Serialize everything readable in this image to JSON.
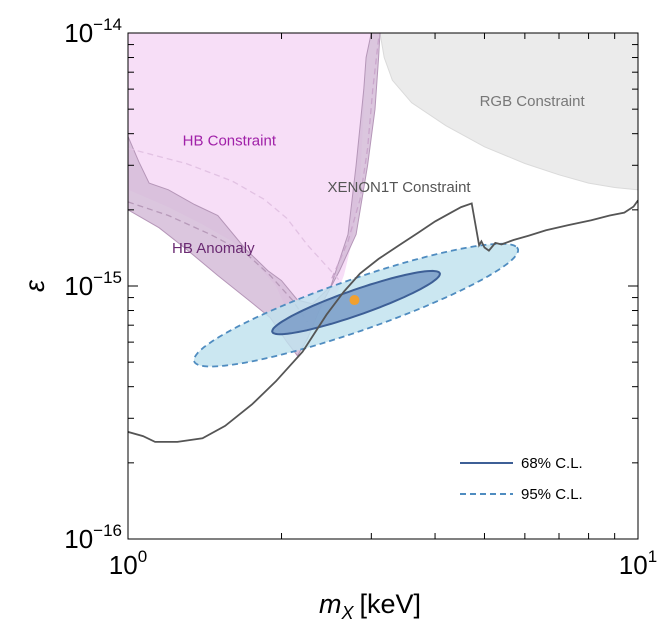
{
  "chart_data": {
    "type": "line",
    "xlabel_var": "m",
    "xlabel_sub": "X",
    "xlabel_unit": "[keV]",
    "ylabel": "ε",
    "x_scale": "log",
    "y_scale": "log",
    "xlim": [
      1,
      10
    ],
    "ylim": [
      1e-16,
      1e-14
    ],
    "x_ticks": [
      {
        "value": 1,
        "base": "10",
        "exp": "0"
      },
      {
        "value": 10,
        "base": "10",
        "exp": "1"
      }
    ],
    "y_ticks": [
      {
        "value": 1e-16,
        "base": "10",
        "exp": "−16"
      },
      {
        "value": 1e-15,
        "base": "10",
        "exp": "−15"
      },
      {
        "value": 1e-14,
        "base": "10",
        "exp": "−14"
      }
    ],
    "grid": false,
    "legend_position": "bottom-right",
    "colors": {
      "xenon": "#555555",
      "hb_constraint_fill": "#f7def7",
      "hb_anomaly_fill": "#d5bcd8",
      "rgb_fill": "#ebebeb",
      "cl68_fill": "#7a9cc8",
      "cl68_line": "#3d5f96",
      "cl95_fill": "#c0e2ee",
      "cl95_line": "#4f8cc0",
      "best_fit": "#f0a030",
      "hb_constraint_text": "#a020a8",
      "hb_anomaly_text": "#6a2a72",
      "rgb_text": "#777777"
    },
    "annotations": [
      {
        "text": "HB Constraint",
        "x": 1.58,
        "y": 3.6e-15,
        "color_key": "hb_constraint_text"
      },
      {
        "text": "RGB Constraint",
        "x": 6.2,
        "y": 5.15e-15,
        "color_key": "rgb_text"
      },
      {
        "text": "XENON1T Constraint",
        "x": 3.4,
        "y": 2.35e-15,
        "color_key": "xenon"
      },
      {
        "text": "HB Anomaly",
        "x": 1.47,
        "y": 1.35e-15,
        "color_key": "hb_anomaly_text"
      }
    ],
    "legend": [
      {
        "label": "68% C.L.",
        "style": "solid",
        "color_key": "cl68_line"
      },
      {
        "label": "95% C.L.",
        "style": "dashed",
        "color_key": "cl95_line"
      }
    ],
    "best_fit_point": {
      "x": 2.78,
      "y": 8.8e-16
    },
    "series": [
      {
        "id": "xenon1t",
        "points": [
          [
            1.0,
            2.65e-16
          ],
          [
            1.07,
            2.55e-16
          ],
          [
            1.13,
            2.42e-16
          ],
          [
            1.25,
            2.42e-16
          ],
          [
            1.4,
            2.5e-16
          ],
          [
            1.55,
            2.8e-16
          ],
          [
            1.75,
            3.4e-16
          ],
          [
            1.95,
            4.2e-16
          ],
          [
            2.2,
            5.5e-16
          ],
          [
            2.45,
            7.7e-16
          ],
          [
            2.65,
            9.5e-16
          ],
          [
            2.85,
            1.12e-15
          ],
          [
            3.1,
            1.28e-15
          ],
          [
            3.4,
            1.45e-15
          ],
          [
            3.7,
            1.62e-15
          ],
          [
            4.0,
            1.8e-15
          ],
          [
            4.3,
            1.95e-15
          ],
          [
            4.5,
            2.05e-15
          ],
          [
            4.72,
            2.12e-15
          ],
          [
            4.88,
            1.45e-15
          ],
          [
            4.93,
            1.5e-15
          ],
          [
            5.0,
            1.42e-15
          ],
          [
            5.1,
            1.38e-15
          ],
          [
            5.25,
            1.48e-15
          ],
          [
            5.4,
            1.46e-15
          ],
          [
            5.7,
            1.52e-15
          ],
          [
            6.1,
            1.58e-15
          ],
          [
            6.6,
            1.66e-15
          ],
          [
            7.3,
            1.74e-15
          ],
          [
            8.1,
            1.82e-15
          ],
          [
            8.8,
            1.9e-15
          ],
          [
            9.4,
            1.95e-15
          ],
          [
            9.8,
            2.06e-15
          ],
          [
            10.0,
            2.18e-15
          ]
        ]
      },
      {
        "id": "hb_constraint",
        "points": [
          [
            1.0,
            1e-14
          ],
          [
            3.0,
            1e-14
          ],
          [
            2.93,
            8e-15
          ],
          [
            2.9,
            5e-15
          ],
          [
            2.85,
            2.5e-15
          ],
          [
            2.75,
            1.5e-15
          ],
          [
            2.65,
            1.1e-15
          ],
          [
            2.55,
            9e-16
          ],
          [
            2.35,
            8e-16
          ],
          [
            2.15,
            7.5e-16
          ],
          [
            2.05,
            8e-16
          ],
          [
            1.95,
            1e-15
          ],
          [
            1.8,
            1.2e-15
          ],
          [
            1.6,
            1.5e-15
          ],
          [
            1.4,
            1.75e-15
          ],
          [
            1.2,
            2.05e-15
          ],
          [
            1.0,
            2.4e-15
          ]
        ]
      },
      {
        "id": "hb_anomaly",
        "points": [
          [
            1.0,
            3.9e-15
          ],
          [
            1.05,
            3.1e-15
          ],
          [
            1.1,
            2.55e-15
          ],
          [
            1.2,
            2.4e-15
          ],
          [
            1.35,
            2.1e-15
          ],
          [
            1.5,
            1.9e-15
          ],
          [
            1.7,
            1.4e-15
          ],
          [
            1.88,
            1.15e-15
          ],
          [
            2.0,
            1.05e-15
          ],
          [
            2.15,
            8.8e-16
          ],
          [
            2.3,
            8.5e-16
          ],
          [
            2.5,
            1e-15
          ],
          [
            2.7,
            1.6e-15
          ],
          [
            2.8,
            3e-15
          ],
          [
            2.9,
            6e-15
          ],
          [
            2.93,
            8e-15
          ],
          [
            3.0,
            1e-14
          ],
          [
            3.12,
            1e-14
          ],
          [
            3.1,
            8e-15
          ],
          [
            3.05,
            5e-15
          ],
          [
            2.95,
            3e-15
          ],
          [
            2.8,
            1.6e-15
          ],
          [
            2.6,
            1.15e-15
          ],
          [
            2.4,
            8.5e-16
          ],
          [
            2.25,
            6.2e-16
          ],
          [
            2.15,
            5.3e-16
          ],
          [
            2.05,
            6e-16
          ],
          [
            1.9,
            7.5e-16
          ],
          [
            1.7,
            9e-16
          ],
          [
            1.5,
            1.1e-15
          ],
          [
            1.3,
            1.4e-15
          ],
          [
            1.15,
            1.7e-15
          ],
          [
            1.0,
            2e-15
          ]
        ]
      },
      {
        "id": "hb_constraint_edge_dashed",
        "points": [
          [
            3.1,
            9.5e-15
          ],
          [
            3.02,
            6e-15
          ],
          [
            2.95,
            3.5e-15
          ],
          [
            2.85,
            2.2e-15
          ],
          [
            2.7,
            1.5e-15
          ],
          [
            2.5,
            1.05e-15
          ]
        ]
      },
      {
        "id": "hb_constraint_inner_dashed",
        "points": [
          [
            1.0,
            3.5e-15
          ],
          [
            1.3,
            3.05e-15
          ],
          [
            1.6,
            2.6e-15
          ],
          [
            1.85,
            2.2e-15
          ],
          [
            2.05,
            1.85e-15
          ],
          [
            2.25,
            1.45e-15
          ],
          [
            2.45,
            1.2e-15
          ],
          [
            2.6,
            1.05e-15
          ]
        ]
      },
      {
        "id": "hb_anomaly_inner_dashed",
        "points": [
          [
            1.0,
            2.15e-15
          ],
          [
            1.2,
            1.9e-15
          ],
          [
            1.45,
            1.6e-15
          ],
          [
            1.7,
            1.35e-15
          ],
          [
            1.9,
            1.1e-15
          ],
          [
            2.1,
            8.8e-16
          ],
          [
            2.25,
            7.2e-16
          ]
        ]
      },
      {
        "id": "rgb_constraint",
        "points": [
          [
            3.12,
            1e-14
          ],
          [
            10.0,
            1e-14
          ],
          [
            10.0,
            2.4e-15
          ],
          [
            9.0,
            2.45e-15
          ],
          [
            8.0,
            2.55e-15
          ],
          [
            7.0,
            2.75e-15
          ],
          [
            6.0,
            3.05e-15
          ],
          [
            5.0,
            3.55e-15
          ],
          [
            4.2,
            4.3e-15
          ],
          [
            3.6,
            5.3e-15
          ],
          [
            3.3,
            6.5e-15
          ],
          [
            3.18,
            8e-15
          ],
          [
            3.12,
            1e-14
          ]
        ]
      },
      {
        "id": "cl95",
        "ellipse": {
          "center": [
            2.8,
            8.4e-16
          ],
          "semi_major_log": 0.39,
          "semi_minor_log": 0.088,
          "angle_deg": 36.5
        }
      },
      {
        "id": "cl68",
        "ellipse": {
          "center": [
            2.8,
            8.6e-16
          ],
          "semi_major_log": 0.202,
          "semi_minor_log": 0.043,
          "angle_deg": 36.5
        }
      }
    ]
  }
}
